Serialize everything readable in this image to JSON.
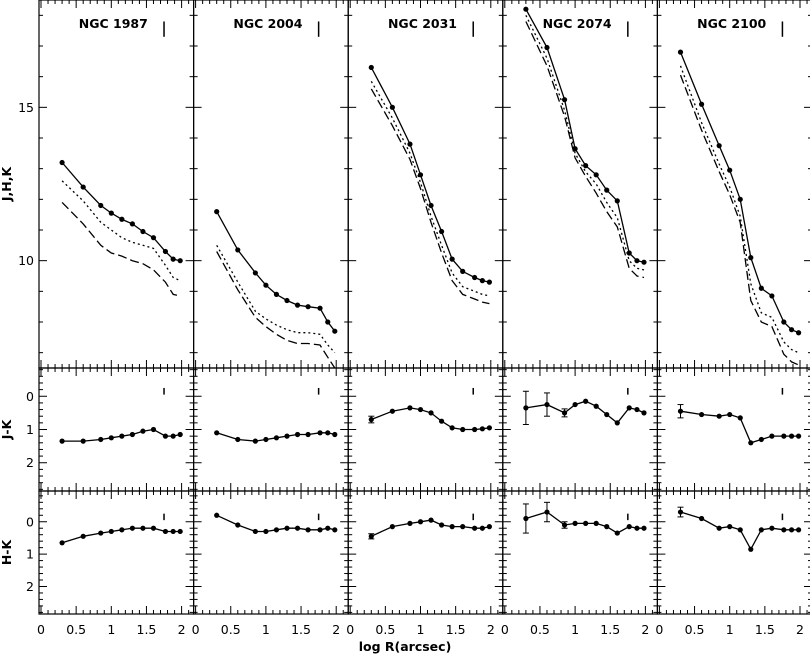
{
  "chart_data": {
    "type": "line",
    "xlabel": "log R(arcsec)",
    "x_ticks": [
      0,
      0.5,
      1,
      1.5,
      2
    ],
    "x_tick_labels": [
      "0",
      "0.5",
      "1",
      "1.5",
      "2"
    ],
    "xlim": [
      0,
      2.2
    ],
    "rows": [
      {
        "ylabel": "J,H,K",
        "ylim": [
          18.5,
          6.5
        ],
        "ticks": [
          10,
          15
        ],
        "tick_labels": [
          "10",
          "15"
        ]
      },
      {
        "ylabel": "J-K",
        "ylim": [
          -0.85,
          2.85
        ],
        "ticks": [
          0,
          1,
          2
        ],
        "tick_labels": [
          "0",
          "1",
          "2"
        ]
      },
      {
        "ylabel": "H-K",
        "ylim": [
          -0.95,
          2.85
        ],
        "ticks": [
          0,
          1,
          2
        ],
        "tick_labels": [
          "0",
          "1",
          "2"
        ]
      }
    ],
    "panels": [
      {
        "title": "NGC 1987",
        "seeing_x": 1.75,
        "x": [
          0.3,
          0.6,
          0.85,
          1.0,
          1.15,
          1.3,
          1.45,
          1.6,
          1.77,
          1.88,
          1.98
        ],
        "x_ir": [
          0.3,
          0.6,
          0.85,
          1.0,
          1.15,
          1.3,
          1.45,
          1.6,
          1.77,
          1.88,
          1.98
        ],
        "J": [
          13.2,
          12.4,
          11.8,
          11.55,
          11.35,
          11.2,
          10.95,
          10.75,
          10.3,
          10.05,
          10.0
        ],
        "H": [
          12.6,
          11.95,
          11.25,
          11.0,
          10.75,
          10.6,
          10.5,
          10.4,
          9.85,
          9.45,
          9.35
        ],
        "K": [
          11.9,
          11.2,
          10.5,
          10.25,
          10.15,
          10.0,
          9.9,
          9.7,
          9.3,
          8.9,
          8.85
        ],
        "JK": [
          1.35,
          1.35,
          1.3,
          1.25,
          1.2,
          1.15,
          1.05,
          1.0,
          1.2,
          1.2,
          1.15
        ],
        "JK_err": [
          0,
          0,
          0,
          0,
          0,
          0,
          0,
          0,
          0,
          0,
          0
        ],
        "HK": [
          0.65,
          0.45,
          0.35,
          0.3,
          0.25,
          0.2,
          0.2,
          0.2,
          0.3,
          0.3,
          0.3
        ],
        "HK_err": [
          0,
          0,
          0,
          0,
          0,
          0,
          0,
          0,
          0,
          0,
          0
        ]
      },
      {
        "title": "NGC 2004",
        "seeing_x": 1.75,
        "x": [
          0.3,
          0.6,
          0.85,
          1.0,
          1.15,
          1.3,
          1.45,
          1.6,
          1.77,
          1.88,
          1.98
        ],
        "x_ir": [
          0.3,
          0.6,
          0.85,
          1.0,
          1.15,
          1.3,
          1.45,
          1.6,
          1.77,
          1.88,
          1.98
        ],
        "J": [
          11.6,
          10.35,
          9.6,
          9.2,
          8.9,
          8.7,
          8.55,
          8.5,
          8.45,
          8.0,
          7.7
        ],
        "H": [
          10.5,
          9.3,
          8.35,
          8.1,
          7.9,
          7.75,
          7.65,
          7.65,
          7.6,
          7.25,
          7.0
        ],
        "K": [
          10.3,
          9.05,
          8.15,
          7.85,
          7.6,
          7.4,
          7.3,
          7.3,
          7.25,
          6.85,
          6.5
        ],
        "JK": [
          1.1,
          1.3,
          1.35,
          1.3,
          1.25,
          1.2,
          1.15,
          1.15,
          1.1,
          1.1,
          1.15
        ],
        "JK_err": [
          0,
          0,
          0,
          0,
          0,
          0,
          0,
          0,
          0,
          0,
          0
        ],
        "HK": [
          -0.2,
          0.1,
          0.3,
          0.3,
          0.25,
          0.2,
          0.2,
          0.25,
          0.25,
          0.2,
          0.25
        ],
        "HK_err": [
          0,
          0,
          0,
          0,
          0,
          0,
          0,
          0,
          0,
          0,
          0
        ]
      },
      {
        "title": "NGC 2031",
        "seeing_x": 1.75,
        "x": [
          0.3,
          0.6,
          0.85,
          1.0,
          1.15,
          1.3,
          1.45,
          1.6,
          1.77,
          1.88,
          1.98
        ],
        "x_ir": [
          0.3,
          0.6,
          0.85,
          1.0,
          1.15,
          1.3,
          1.45,
          1.6,
          1.77,
          1.88,
          1.98
        ],
        "J": [
          16.3,
          15.0,
          13.8,
          12.8,
          11.8,
          10.95,
          10.05,
          9.65,
          9.45,
          9.35,
          9.3
        ],
        "H": [
          15.85,
          14.65,
          13.5,
          12.55,
          11.45,
          10.5,
          9.6,
          9.15,
          9.0,
          8.9,
          8.85
        ],
        "K": [
          15.6,
          14.4,
          13.3,
          12.35,
          11.25,
          10.25,
          9.35,
          8.9,
          8.75,
          8.65,
          8.6
        ],
        "JK": [
          0.7,
          0.45,
          0.35,
          0.4,
          0.5,
          0.75,
          0.95,
          1.0,
          1.0,
          0.98,
          0.95
        ],
        "JK_err": [
          0.1,
          0,
          0,
          0,
          0,
          0,
          0,
          0,
          0,
          0,
          0
        ],
        "HK": [
          0.45,
          0.15,
          0.05,
          0.0,
          -0.05,
          0.1,
          0.15,
          0.15,
          0.2,
          0.2,
          0.15
        ],
        "HK_err": [
          0.08,
          0,
          0,
          0,
          0,
          0,
          0,
          0,
          0,
          0,
          0
        ]
      },
      {
        "title": "NGC 2074",
        "seeing_x": 1.75,
        "x": [
          0.3,
          0.6,
          0.85,
          1.0,
          1.15,
          1.3,
          1.45,
          1.6,
          1.77,
          1.88,
          1.98
        ],
        "x_ir": [
          0.3,
          0.6,
          0.85,
          1.0,
          1.15,
          1.3,
          1.45,
          1.6,
          1.77,
          1.88,
          1.98
        ],
        "J": [
          18.2,
          16.95,
          15.25,
          13.65,
          13.1,
          12.8,
          12.3,
          11.95,
          10.25,
          10.0,
          9.95
        ],
        "H": [
          18.0,
          16.6,
          14.9,
          13.5,
          12.9,
          12.5,
          11.9,
          11.4,
          10.0,
          9.75,
          9.7
        ],
        "K": [
          17.8,
          16.35,
          14.7,
          13.35,
          12.75,
          12.2,
          11.6,
          11.1,
          9.75,
          9.5,
          9.45
        ],
        "JK": [
          0.35,
          0.25,
          0.5,
          0.25,
          0.15,
          0.3,
          0.55,
          0.8,
          0.35,
          0.4,
          0.5
        ],
        "JK_err": [
          0.5,
          0.35,
          0.12,
          0,
          0,
          0,
          0,
          0,
          0,
          0,
          0
        ],
        "HK": [
          -0.1,
          -0.3,
          0.1,
          0.05,
          0.05,
          0.05,
          0.15,
          0.35,
          0.15,
          0.2,
          0.2
        ],
        "HK_err": [
          0.45,
          0.3,
          0.1,
          0,
          0,
          0,
          0,
          0,
          0,
          0,
          0
        ]
      },
      {
        "title": "NGC 2100",
        "seeing_x": 1.75,
        "x": [
          0.3,
          0.6,
          0.85,
          1.0,
          1.15,
          1.3,
          1.45,
          1.6,
          1.77,
          1.88,
          1.98
        ],
        "x_ir": [
          0.3,
          0.6,
          0.85,
          1.0,
          1.15,
          1.3,
          1.45,
          1.6,
          1.77,
          1.88,
          1.98
        ],
        "J": [
          16.8,
          15.1,
          13.75,
          12.95,
          12.0,
          10.1,
          9.1,
          8.85,
          8.0,
          7.75,
          7.65
        ],
        "H": [
          16.35,
          14.5,
          13.15,
          12.4,
          11.45,
          9.25,
          8.3,
          8.15,
          7.35,
          7.1,
          7.0
        ],
        "K": [
          16.05,
          14.25,
          12.9,
          12.15,
          11.25,
          8.7,
          8.0,
          7.85,
          6.95,
          6.7,
          6.6
        ],
        "JK": [
          0.45,
          0.55,
          0.6,
          0.55,
          0.65,
          1.4,
          1.3,
          1.2,
          1.2,
          1.2,
          1.2
        ],
        "JK_err": [
          0.2,
          0,
          0,
          0,
          0,
          0,
          0,
          0,
          0,
          0,
          0
        ],
        "HK": [
          -0.3,
          -0.1,
          0.2,
          0.15,
          0.25,
          0.85,
          0.25,
          0.2,
          0.25,
          0.25,
          0.25
        ],
        "HK_err": [
          0.15,
          0,
          0,
          0,
          0,
          0,
          0,
          0,
          0,
          0,
          0
        ]
      }
    ]
  }
}
